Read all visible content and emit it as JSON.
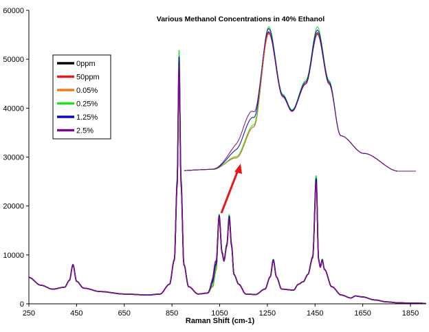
{
  "chart_data": {
    "type": "line",
    "title": "Various Methanol Concentrations in 40% Ethanol",
    "xlabel": "Raman Shift (cm-1)",
    "ylabel": "",
    "xlim": [
      250,
      1915
    ],
    "ylim": [
      0,
      60000
    ],
    "x_ticks": [
      250,
      450,
      650,
      850,
      1050,
      1250,
      1450,
      1650,
      1850
    ],
    "y_ticks": [
      0,
      10000,
      20000,
      30000,
      40000,
      50000,
      60000
    ],
    "grid": false,
    "legend_position": "upper-left (inside plot)",
    "series": [
      {
        "name": "0ppm",
        "color": "#000000"
      },
      {
        "name": "50ppm",
        "color": "#e41a1c"
      },
      {
        "name": "0.05%",
        "color": "#f07c1e"
      },
      {
        "name": "0.25%",
        "color": "#22e01e"
      },
      {
        "name": "1.25%",
        "color": "#0a0ab4"
      },
      {
        "name": "2.5%",
        "color": "#7a0a8c"
      }
    ],
    "base_spectrum": {
      "x": [
        250,
        300,
        350,
        400,
        420,
        435,
        450,
        480,
        550,
        650,
        750,
        800,
        840,
        860,
        872,
        880,
        888,
        900,
        920,
        960,
        1000,
        1020,
        1035,
        1048,
        1060,
        1068,
        1080,
        1090,
        1100,
        1110,
        1130,
        1160,
        1200,
        1240,
        1262,
        1275,
        1288,
        1310,
        1360,
        1380,
        1400,
        1420,
        1440,
        1455,
        1465,
        1472,
        1480,
        1490,
        1520,
        1560,
        1600,
        1620,
        1650,
        1700,
        1750,
        1800,
        1850,
        1915
      ],
      "y": [
        5400,
        3800,
        3000,
        3400,
        4800,
        8000,
        4600,
        3200,
        2500,
        2000,
        1800,
        2000,
        4000,
        9000,
        25000,
        50000,
        25000,
        8000,
        3500,
        2000,
        2200,
        3500,
        7000,
        17800,
        10500,
        8800,
        12000,
        17800,
        12000,
        6000,
        4000,
        2000,
        1900,
        3000,
        5500,
        9000,
        5500,
        3000,
        2800,
        4000,
        4500,
        6000,
        9500,
        25600,
        9000,
        7500,
        9000,
        7000,
        3500,
        1800,
        1200,
        1600,
        1400,
        800,
        400,
        200,
        150,
        100
      ]
    },
    "peak_values": {
      "0ppm": {
        "880": 49500,
        "1048": 17200,
        "1090": 17300,
        "1455": 25000
      },
      "50ppm": {
        "880": 49000,
        "1048": 17000,
        "1090": 17200,
        "1455": 24800
      },
      "0.05%": {
        "880": 49300,
        "1048": 17100,
        "1090": 17200,
        "1455": 24900
      },
      "0.25%": {
        "880": 52000,
        "1048": 18200,
        "1090": 18000,
        "1455": 26000
      },
      "1.25%": {
        "880": 50500,
        "1048": 17700,
        "1090": 17700,
        "1455": 25500
      },
      "2.5%": {
        "880": 48500,
        "1048": 17500,
        "1090": 17500,
        "1455": 25200
      }
    },
    "inset": {
      "description": "Zoomed view of the 1000-1150 cm-1 doublet region; shoulder near ~1030 cm-1 grows with methanol concentration",
      "shoulder_order": [
        "0ppm",
        "50ppm",
        "0.05%",
        "0.25%",
        "1.25%",
        "2.5%"
      ],
      "annotation": "red arrow pointing from 1050 peak to inset shoulder"
    },
    "annotations": [
      {
        "type": "arrow",
        "color": "#e8161a",
        "from": [
          1050,
          18500
        ],
        "to": [
          1130,
          28500
        ]
      }
    ]
  },
  "legend": {
    "items": [
      {
        "label": "0ppm",
        "color": "#000000"
      },
      {
        "label": "50ppm",
        "color": "#e41a1c"
      },
      {
        "label": "0.05%",
        "color": "#f07c1e"
      },
      {
        "label": "0.25%",
        "color": "#22e01e"
      },
      {
        "label": "1.25%",
        "color": "#0a0ab4"
      },
      {
        "label": "2.5%",
        "color": "#7a0a8c"
      }
    ]
  },
  "axes": {
    "x_title": "Raman Shift (cm-1)",
    "x_tick_labels": [
      "250",
      "450",
      "650",
      "850",
      "1050",
      "1250",
      "1450",
      "1650",
      "1850"
    ],
    "y_tick_labels": [
      "0",
      "10000",
      "20000",
      "30000",
      "40000",
      "50000",
      "60000"
    ]
  },
  "title": "Various Methanol Concentrations in 40% Ethanol"
}
